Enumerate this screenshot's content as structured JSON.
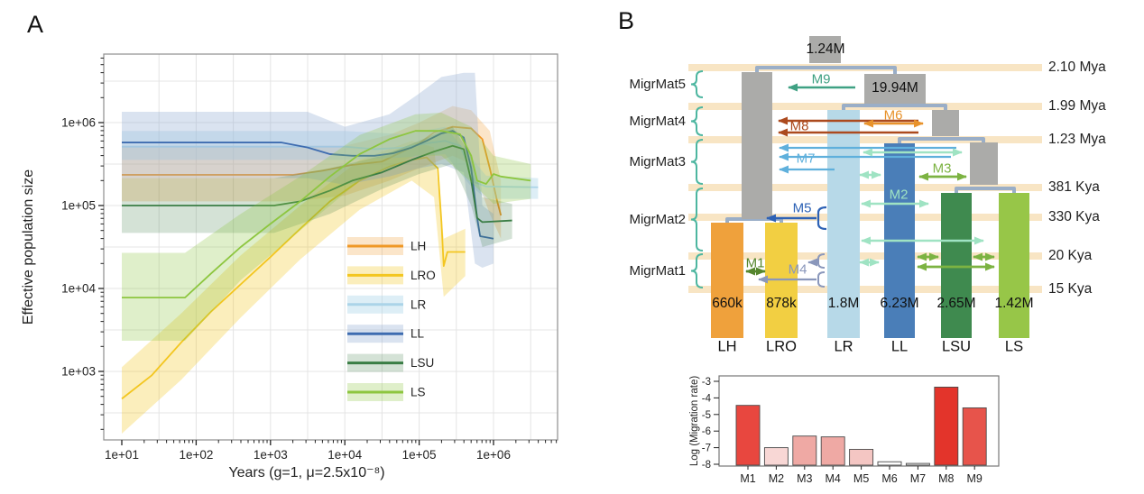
{
  "figure": {
    "panel_a_label": "A",
    "panel_b_label": "B"
  },
  "chart_data": [
    {
      "type": "line",
      "panel": "A",
      "xlabel": "Years (g=1, μ=2.5x10⁻⁸)",
      "ylabel": "Effective population size",
      "x_scale": "log10",
      "y_scale": "log10",
      "xlim_log10": [
        0.76,
        6.86
      ],
      "ylim_log10": [
        2.17,
        6.83
      ],
      "grid": "half-decade",
      "legend_position": "inside-right",
      "x_ticks": [
        {
          "v": 1,
          "label": "1e+01"
        },
        {
          "v": 2,
          "label": "1e+02"
        },
        {
          "v": 3,
          "label": "1e+03"
        },
        {
          "v": 4,
          "label": "1e+04"
        },
        {
          "v": 5,
          "label": "1e+05"
        },
        {
          "v": 6,
          "label": "1e+06"
        }
      ],
      "y_ticks": [
        {
          "v": 3,
          "label": "1e+03"
        },
        {
          "v": 4,
          "label": "1e+04"
        },
        {
          "v": 5,
          "label": "1e+05"
        },
        {
          "v": 6,
          "label": "1e+06"
        }
      ],
      "series": [
        {
          "name": "LH",
          "color": "#EF9826",
          "band_color": "rgba(239,152,38,0.25)",
          "points_log10": [
            [
              1,
              5.37
            ],
            [
              3.3,
              5.37
            ],
            [
              3.7,
              5.42
            ],
            [
              4.1,
              5.49
            ],
            [
              4.5,
              5.53
            ],
            [
              4.8,
              5.66
            ],
            [
              5.0,
              5.75
            ],
            [
              5.2,
              5.88
            ],
            [
              5.45,
              5.95
            ],
            [
              5.7,
              5.93
            ],
            [
              5.85,
              5.8
            ],
            [
              5.95,
              5.45
            ],
            [
              6.05,
              5.05
            ],
            [
              6.1,
              4.88
            ]
          ],
          "band_log10": [
            [
              1,
              5.05,
              5.72
            ],
            [
              3.3,
              5.05,
              5.72
            ],
            [
              4.0,
              5.12,
              5.72
            ],
            [
              4.6,
              5.3,
              5.85
            ],
            [
              5.0,
              5.45,
              6.0
            ],
            [
              5.45,
              5.6,
              6.2
            ],
            [
              5.7,
              5.5,
              6.15
            ],
            [
              5.95,
              4.9,
              5.9
            ],
            [
              6.1,
              4.6,
              5.3
            ]
          ]
        },
        {
          "name": "LRO",
          "color": "#F3C620",
          "band_color": "rgba(243,198,32,0.3)",
          "points_log10": [
            [
              1,
              2.67
            ],
            [
              1.4,
              2.95
            ],
            [
              1.8,
              3.35
            ],
            [
              2.2,
              3.72
            ],
            [
              2.6,
              4.05
            ],
            [
              3.0,
              4.38
            ],
            [
              3.4,
              4.72
            ],
            [
              3.8,
              5.05
            ],
            [
              4.2,
              5.3
            ],
            [
              4.6,
              5.47
            ],
            [
              4.9,
              5.55
            ],
            [
              5.1,
              5.58
            ],
            [
              5.25,
              5.45
            ],
            [
              5.3,
              4.8
            ],
            [
              5.33,
              4.27
            ],
            [
              5.38,
              4.44
            ],
            [
              5.62,
              4.44
            ]
          ],
          "band_log10": [
            [
              1,
              2.25,
              3.05
            ],
            [
              1.8,
              2.9,
              3.7
            ],
            [
              2.6,
              3.65,
              4.4
            ],
            [
              3.4,
              4.35,
              5.0
            ],
            [
              4.2,
              4.95,
              5.55
            ],
            [
              4.9,
              5.3,
              5.78
            ],
            [
              5.2,
              5.1,
              5.7
            ],
            [
              5.33,
              3.9,
              4.6
            ],
            [
              5.62,
              4.15,
              4.72
            ]
          ]
        },
        {
          "name": "LR",
          "color": "#ABD4E8",
          "band_color": "rgba(171,212,232,0.4)",
          "points_log10": [
            [
              1,
              5.71
            ],
            [
              4.0,
              5.71
            ],
            [
              4.4,
              5.68
            ],
            [
              4.8,
              5.7
            ],
            [
              5.1,
              5.75
            ],
            [
              5.35,
              5.78
            ],
            [
              5.55,
              5.72
            ],
            [
              5.68,
              5.45
            ],
            [
              5.75,
              5.28
            ],
            [
              5.9,
              5.23
            ],
            [
              6.6,
              5.22
            ]
          ],
          "band_log10": [
            [
              1,
              5.55,
              5.9
            ],
            [
              4.0,
              5.55,
              5.9
            ],
            [
              4.8,
              5.58,
              5.86
            ],
            [
              5.35,
              5.62,
              5.95
            ],
            [
              5.68,
              5.25,
              5.6
            ],
            [
              5.9,
              5.08,
              5.36
            ],
            [
              6.6,
              5.08,
              5.33
            ]
          ]
        },
        {
          "name": "LL",
          "color": "#3E6CB0",
          "band_color": "rgba(148,176,212,0.35)",
          "points_log10": [
            [
              1,
              5.76
            ],
            [
              3.15,
              5.76
            ],
            [
              3.5,
              5.7
            ],
            [
              3.8,
              5.62
            ],
            [
              4.1,
              5.6
            ],
            [
              4.4,
              5.6
            ],
            [
              4.65,
              5.63
            ],
            [
              4.9,
              5.7
            ],
            [
              5.1,
              5.78
            ],
            [
              5.3,
              5.87
            ],
            [
              5.45,
              5.9
            ],
            [
              5.6,
              5.82
            ],
            [
              5.7,
              5.45
            ],
            [
              5.78,
              4.85
            ],
            [
              5.82,
              4.63
            ],
            [
              6.0,
              4.6
            ]
          ],
          "band_log10": [
            [
              1,
              5.33,
              6.13
            ],
            [
              3.5,
              5.33,
              6.13
            ],
            [
              4.0,
              5.25,
              5.95
            ],
            [
              4.6,
              5.35,
              6.1
            ],
            [
              5.0,
              5.45,
              6.35
            ],
            [
              5.3,
              5.5,
              6.55
            ],
            [
              5.6,
              5.4,
              6.6
            ],
            [
              5.75,
              4.3,
              6.6
            ],
            [
              5.85,
              4.25,
              5.0
            ],
            [
              6.0,
              4.3,
              4.9
            ]
          ]
        },
        {
          "name": "LSU",
          "color": "#3A7D45",
          "band_color": "rgba(58,125,69,0.22)",
          "points_log10": [
            [
              1,
              5.0
            ],
            [
              3.05,
              5.0
            ],
            [
              3.4,
              5.05
            ],
            [
              3.8,
              5.18
            ],
            [
              4.1,
              5.3
            ],
            [
              4.5,
              5.4
            ],
            [
              4.9,
              5.55
            ],
            [
              5.2,
              5.65
            ],
            [
              5.45,
              5.72
            ],
            [
              5.6,
              5.68
            ],
            [
              5.7,
              5.3
            ],
            [
              5.78,
              4.85
            ],
            [
              5.85,
              4.8
            ],
            [
              6.25,
              4.82
            ]
          ],
          "band_log10": [
            [
              1,
              4.67,
              5.33
            ],
            [
              3.05,
              4.67,
              5.33
            ],
            [
              3.8,
              4.9,
              5.45
            ],
            [
              4.5,
              5.2,
              5.6
            ],
            [
              5.0,
              5.38,
              5.78
            ],
            [
              5.45,
              5.5,
              5.95
            ],
            [
              5.7,
              5.0,
              5.6
            ],
            [
              5.85,
              4.5,
              5.1
            ],
            [
              6.25,
              4.6,
              5.02
            ]
          ]
        },
        {
          "name": "LS",
          "color": "#8DC63F",
          "band_color": "rgba(141,198,63,0.28)",
          "points_log10": [
            [
              1,
              3.89
            ],
            [
              1.85,
              3.89
            ],
            [
              2.2,
              4.18
            ],
            [
              2.6,
              4.5
            ],
            [
              3.0,
              4.78
            ],
            [
              3.4,
              5.05
            ],
            [
              3.8,
              5.35
            ],
            [
              4.2,
              5.62
            ],
            [
              4.6,
              5.8
            ],
            [
              4.95,
              5.9
            ],
            [
              5.3,
              5.9
            ],
            [
              5.55,
              5.86
            ],
            [
              5.7,
              5.6
            ],
            [
              5.78,
              5.3
            ],
            [
              5.9,
              5.26
            ],
            [
              6.0,
              5.38
            ],
            [
              6.1,
              5.35
            ],
            [
              6.5,
              5.3
            ]
          ],
          "band_log10": [
            [
              1,
              3.37,
              4.43
            ],
            [
              1.85,
              3.37,
              4.43
            ],
            [
              2.6,
              4.1,
              4.9
            ],
            [
              3.4,
              4.7,
              5.35
            ],
            [
              4.2,
              5.3,
              5.85
            ],
            [
              4.95,
              5.6,
              6.1
            ],
            [
              5.3,
              5.6,
              6.12
            ],
            [
              5.7,
              5.28,
              5.95
            ],
            [
              6.0,
              5.02,
              5.6
            ],
            [
              6.5,
              5.08,
              5.5
            ]
          ]
        }
      ]
    },
    {
      "type": "bar",
      "panel": "B-inset",
      "ylabel": "Log (Migration rate)",
      "categories": [
        "M1",
        "M2",
        "M3",
        "M4",
        "M5",
        "M6",
        "M7",
        "M8",
        "M9"
      ],
      "values": [
        -4.45,
        -7.0,
        -6.3,
        -6.35,
        -7.1,
        -7.85,
        -7.95,
        -3.35,
        -4.6
      ],
      "bar_colors": [
        "#E8473F",
        "#F8D7D5",
        "#EFA9A4",
        "#EFA9A4",
        "#F4C6C3",
        "#FDFDFD",
        "#F0F0F0",
        "#E3342B",
        "#E7544B"
      ],
      "ylim": [
        -8,
        -3
      ],
      "y_ticks": [
        -3,
        -4,
        -5,
        -6,
        -7,
        -8
      ],
      "grid": "off"
    }
  ],
  "panel_b": {
    "migr_mats": [
      "MigrMat5",
      "MigrMat4",
      "MigrMat3",
      "MigrMat2",
      "MigrMat1"
    ],
    "times": [
      "2.10 Mya",
      "1.99 Mya",
      "1.23 Mya",
      "381 Kya",
      "330 Kya",
      "20 Kya",
      "15 Kya"
    ],
    "root_size": "1.24M",
    "ancestor_size": "19.94M",
    "populations": [
      {
        "name": "LH",
        "size": "660k",
        "color": "#EFA13C"
      },
      {
        "name": "LRO",
        "size": "878k",
        "color": "#F2CF42"
      },
      {
        "name": "LR",
        "size": "1.8M",
        "color": "#B7D9E8"
      },
      {
        "name": "LL",
        "size": "6.23M",
        "color": "#4A7EB8"
      },
      {
        "name": "LSU",
        "size": "2.65M",
        "color": "#3F8A4F"
      },
      {
        "name": "LS",
        "size": "1.42M",
        "color": "#97C648"
      }
    ],
    "migrations": [
      {
        "id": "M1",
        "color": "#55862F"
      },
      {
        "id": "M2",
        "color": "#9FE3C3"
      },
      {
        "id": "M3",
        "color": "#7CB342"
      },
      {
        "id": "M4",
        "color": "#8A97BB"
      },
      {
        "id": "M5",
        "color": "#2E62B5"
      },
      {
        "id": "M6",
        "color": "#E8922B"
      },
      {
        "id": "M7",
        "color": "#5FB0DC"
      },
      {
        "id": "M8",
        "color": "#AC4A1E"
      },
      {
        "id": "M9",
        "color": "#3FA183"
      }
    ]
  }
}
